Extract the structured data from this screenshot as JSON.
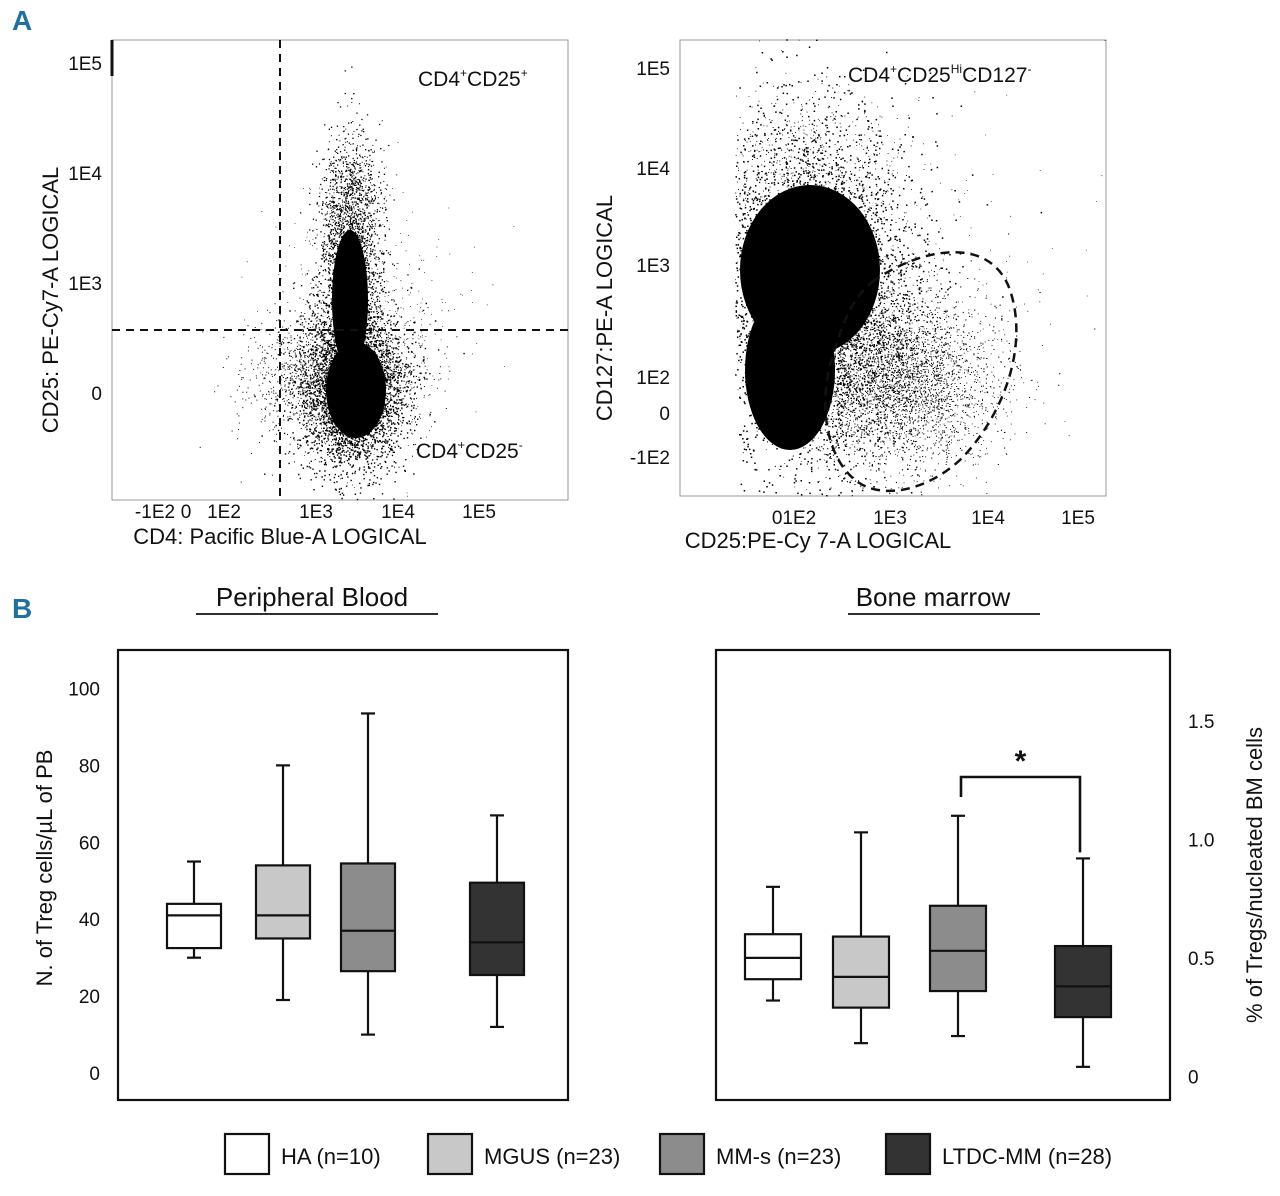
{
  "panel_labels": {
    "a": "A",
    "b": "B"
  },
  "colors": {
    "ha": "#ffffff",
    "mgus": "#c8c8c8",
    "mms": "#8c8c8c",
    "ltdc": "#333333",
    "ink": "#111111",
    "letter": "#1f6fa0"
  },
  "chart_data": [
    {
      "type": "scatter",
      "panel": "A-left",
      "xlabel": "CD4: Pacific Blue-A LOGICAL",
      "ylabel": "CD25: PE-Cy7-A LOGICAL",
      "x_ticks": [
        "-1E2",
        "0",
        "1E2",
        "1E3",
        "1E4",
        "1E5"
      ],
      "y_ticks": [
        "1E5",
        "1E4",
        "1E3",
        "0"
      ],
      "gates": {
        "upper": {
          "main": "CD4",
          "sup1": "+",
          "mid": "CD25",
          "sup2": "+"
        },
        "lower": {
          "main": "CD4",
          "sup1": "+",
          "mid": "CD25",
          "sup2": "-"
        }
      }
    },
    {
      "type": "scatter",
      "panel": "A-right",
      "xlabel": "CD25:PE-Cy 7-A LOGICAL",
      "ylabel": "CD127:PE-A LOGICAL",
      "x_ticks": [
        "01E2",
        "1E3",
        "1E4",
        "1E5"
      ],
      "y_ticks": [
        "1E5",
        "1E4",
        "1E3",
        "1E2",
        "0",
        "-1E2"
      ],
      "gate": {
        "main": "CD4",
        "sup1": "+",
        "mid": "CD25",
        "sup2": "Hi",
        "end": "CD127",
        "sup3": "-"
      }
    },
    {
      "type": "box",
      "panel": "B-left",
      "title": "Peripheral Blood",
      "ylabel": "N. of Treg cells/µL of PB",
      "ylim": [
        -7,
        110
      ],
      "y_ticks": [
        0,
        20,
        40,
        60,
        80,
        100
      ],
      "boxes": [
        {
          "group": "HA (n=10)",
          "min": 30,
          "q1": 32.5,
          "median": 41,
          "q3": 44,
          "max": 55
        },
        {
          "group": "MGUS (n=23)",
          "min": 19,
          "q1": 35,
          "median": 41,
          "q3": 54,
          "max": 80
        },
        {
          "group": "MM-s (n=23)",
          "min": 10,
          "q1": 26.5,
          "median": 37,
          "q3": 54.5,
          "max": 93.5
        },
        {
          "group": "LTDC-MM (n=28)",
          "min": 12,
          "q1": 25.5,
          "median": 34,
          "q3": 49.5,
          "max": 67
        }
      ]
    },
    {
      "type": "box",
      "panel": "B-right",
      "title": "Bone marrow",
      "ylabel": "% of Tregs/nucleated BM cells",
      "ylim": [
        -0.1,
        1.8
      ],
      "y_ticks": [
        "0",
        "0.5",
        "1.0",
        "1.5"
      ],
      "boxes": [
        {
          "group": "HA (n=10)",
          "min": 0.32,
          "q1": 0.41,
          "median": 0.5,
          "q3": 0.6,
          "max": 0.8
        },
        {
          "group": "MGUS (n=23)",
          "min": 0.14,
          "q1": 0.29,
          "median": 0.42,
          "q3": 0.59,
          "max": 1.03
        },
        {
          "group": "MM-s (n=23)",
          "min": 0.17,
          "q1": 0.36,
          "median": 0.53,
          "q3": 0.72,
          "max": 1.1
        },
        {
          "group": "LTDC-MM (n=28)",
          "min": 0.04,
          "q1": 0.25,
          "median": 0.38,
          "q3": 0.55,
          "max": 0.92
        }
      ],
      "significance": {
        "from": "MM-s (n=23)",
        "to": "LTDC-MM (n=28)",
        "label": "*"
      }
    }
  ],
  "legend": [
    {
      "key": "ha",
      "label": "HA (n=10)"
    },
    {
      "key": "mgus",
      "label": "MGUS (n=23)"
    },
    {
      "key": "mms",
      "label": "MM-s (n=23)"
    },
    {
      "key": "ltdc",
      "label": "LTDC-MM (n=28)"
    }
  ]
}
